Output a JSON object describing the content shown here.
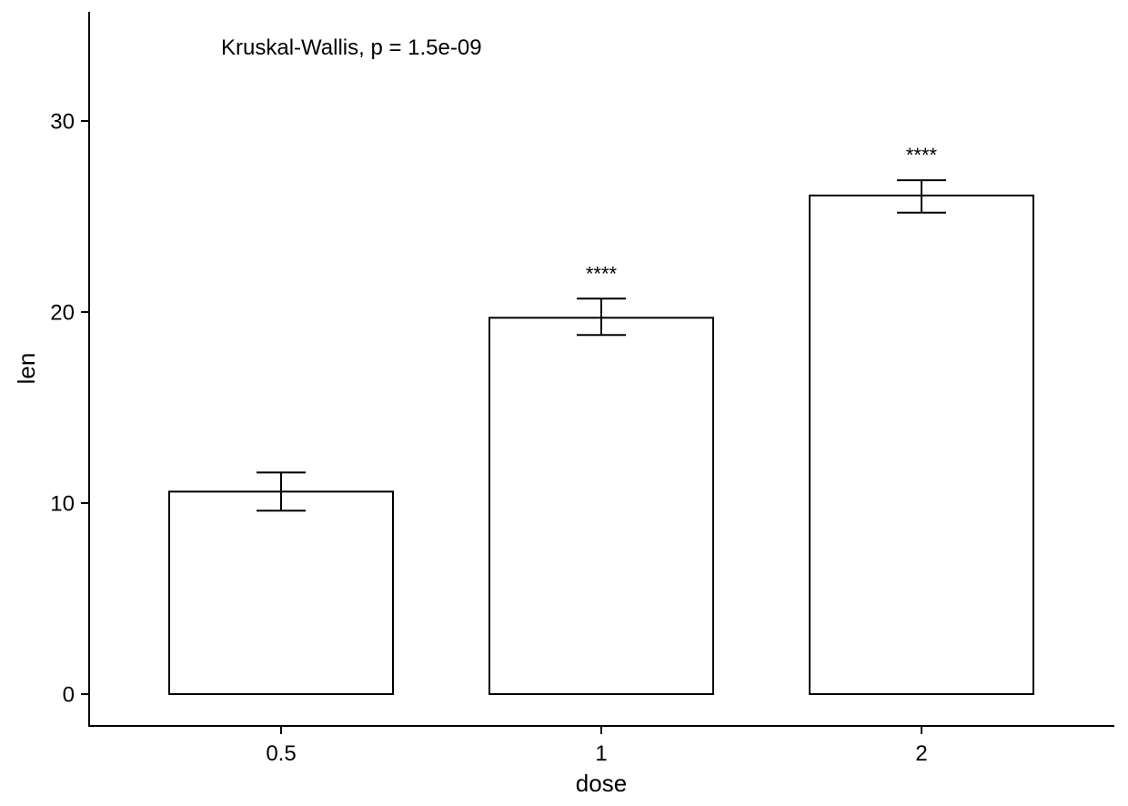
{
  "chart_data": {
    "type": "bar",
    "xlabel": "dose",
    "ylabel": "len",
    "categories": [
      "0.5",
      "1",
      "2"
    ],
    "values": [
      10.6,
      19.7,
      26.1
    ],
    "error_upper": [
      11.6,
      20.7,
      26.9
    ],
    "error_lower": [
      9.6,
      18.8,
      25.2
    ],
    "significance": [
      "",
      "****",
      "****"
    ],
    "annotation": "Kruskal-Wallis, p = 1.5e-09",
    "ylim": [
      -1.6,
      35.5
    ],
    "yticks": [
      0,
      10,
      20,
      30
    ],
    "ytick_labels": [
      "0",
      "10",
      "20",
      "30"
    ],
    "grid": false,
    "bar_fill": "#ffffff",
    "bar_stroke": "#000000"
  }
}
